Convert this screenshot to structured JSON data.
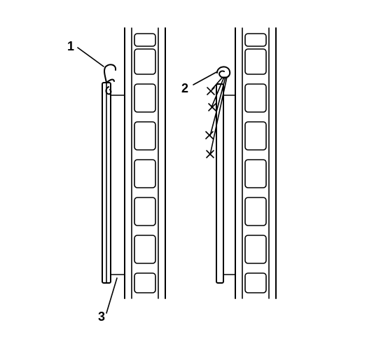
{
  "callouts": {
    "one": "1",
    "two": "2",
    "three": "3"
  },
  "colors": {
    "line": "#000000",
    "background": "#ffffff"
  }
}
